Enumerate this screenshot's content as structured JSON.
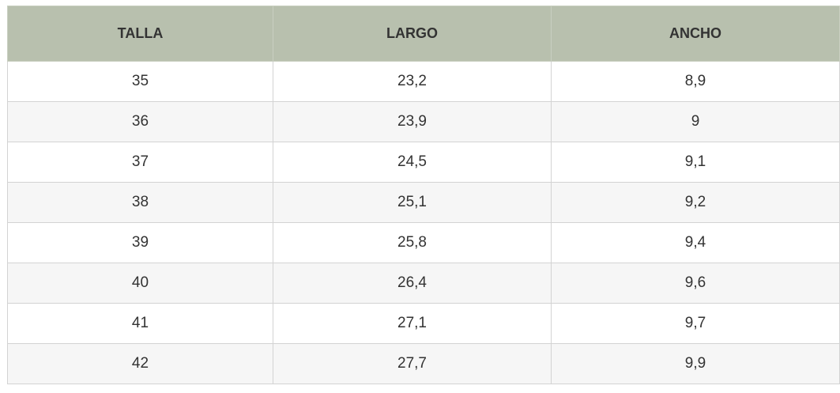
{
  "table": {
    "header": [
      "TALLA",
      "LARGO",
      "ANCHO"
    ],
    "rows": [
      [
        "35",
        "23,2",
        "8,9"
      ],
      [
        "36",
        "23,9",
        "9"
      ],
      [
        "37",
        "24,5",
        "9,1"
      ],
      [
        "38",
        "25,1",
        "9,2"
      ],
      [
        "39",
        "25,8",
        "9,4"
      ],
      [
        "40",
        "26,4",
        "9,6"
      ],
      [
        "41",
        "27,1",
        "9,7"
      ],
      [
        "42",
        "27,7",
        "9,9"
      ]
    ]
  }
}
